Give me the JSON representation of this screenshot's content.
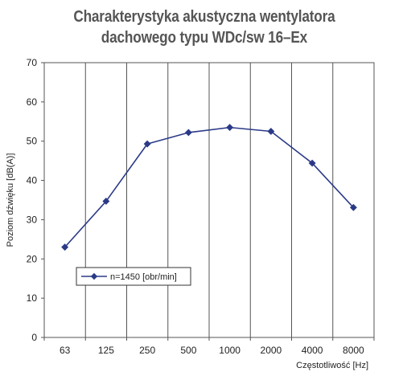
{
  "chart_data": {
    "type": "line",
    "title_lines": [
      "Charakterystyka akustyczna wentylatora",
      "dachowego typu WDc/sw 16–Ex"
    ],
    "xlabel": "Częstotliwość [Hz]",
    "ylabel": "Poziom dźwięku [dB(A)]",
    "categories": [
      "63",
      "125",
      "250",
      "500",
      "1000",
      "2000",
      "4000",
      "8000"
    ],
    "yticks": [
      "0",
      "10",
      "20",
      "30",
      "40",
      "50",
      "60",
      "70"
    ],
    "ylim": [
      0,
      70
    ],
    "grid": "vertical",
    "legend_position": "lower-left",
    "series": [
      {
        "name": "n=1450 [obr/min]",
        "values": [
          23.0,
          34.7,
          49.3,
          52.2,
          53.5,
          52.5,
          44.4,
          33.1
        ],
        "color": "#2b3a87",
        "marker": "diamond"
      }
    ]
  }
}
